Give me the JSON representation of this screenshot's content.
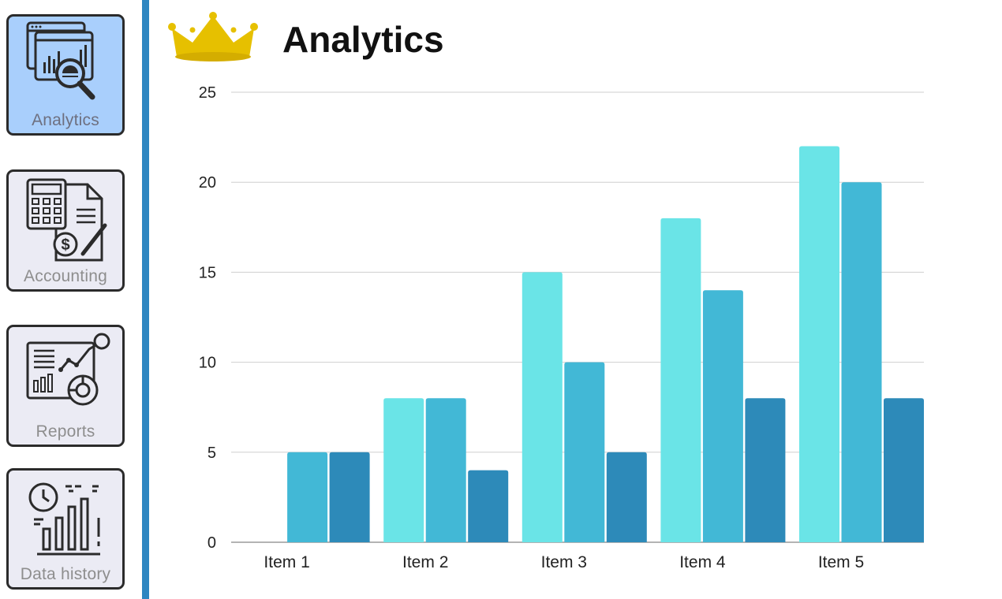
{
  "sidebar": {
    "items": [
      {
        "label": "Analytics",
        "icon": "analytics-magnifier-icon",
        "active": true
      },
      {
        "label": "Accounting",
        "icon": "calculator-invoice-icon",
        "active": false
      },
      {
        "label": "Reports",
        "icon": "report-chart-icon",
        "active": false
      },
      {
        "label": "Data history",
        "icon": "clock-bars-icon",
        "active": false
      }
    ]
  },
  "header": {
    "title": "Analytics",
    "icon": "crown-icon"
  },
  "colors": {
    "sidebar_accent": "#2e86c1",
    "active_tile": "#a9cffc",
    "crown": "#e6c000",
    "series": [
      "#6ae4e7",
      "#42b8d6",
      "#2d8ab9"
    ]
  },
  "chart_data": {
    "type": "bar",
    "title": "",
    "categories": [
      "Item 1",
      "Item 2",
      "Item 3",
      "Item 4",
      "Item 5"
    ],
    "series": [
      {
        "values": [
          0,
          8,
          15,
          18,
          22
        ]
      },
      {
        "values": [
          5,
          8,
          10,
          14,
          20
        ]
      },
      {
        "values": [
          5,
          4,
          5,
          8,
          8
        ]
      }
    ],
    "ylim": [
      0,
      25
    ],
    "yticks": [
      "0",
      "5",
      "10",
      "15",
      "20",
      "25"
    ],
    "grid": true,
    "legend": "none"
  }
}
